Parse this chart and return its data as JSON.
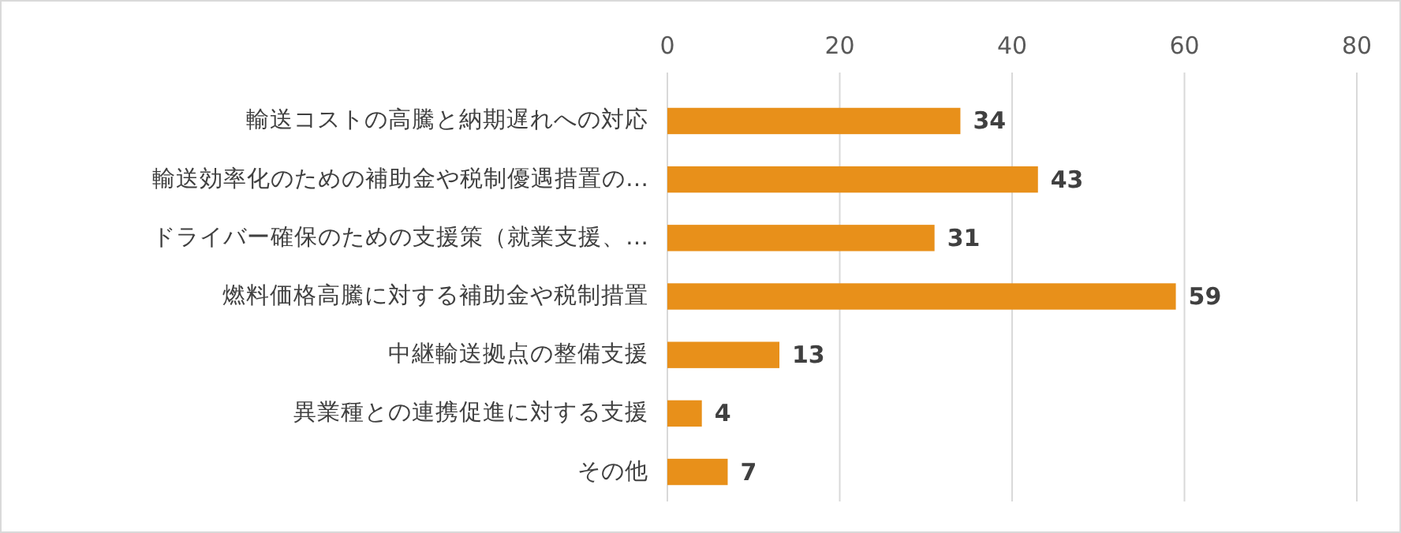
{
  "chart_data": {
    "type": "bar",
    "orientation": "horizontal",
    "categories": [
      "輸送コストの高騰と納期遅れへの対応",
      "輸送効率化のための補助金や税制優遇措置の…",
      "ドライバー確保のための支援策（就業支援、…",
      "燃料価格高騰に対する補助金や税制措置",
      "中継輸送拠点の整備支援",
      "異業種との連携促進に対する支援",
      "その他"
    ],
    "values": [
      34,
      43,
      31,
      59,
      13,
      4,
      7
    ],
    "color": "#e8901a",
    "xlim": [
      0,
      80
    ],
    "xticks": [
      0,
      20,
      40,
      60,
      80
    ],
    "grid": "x",
    "data_labels": true
  }
}
